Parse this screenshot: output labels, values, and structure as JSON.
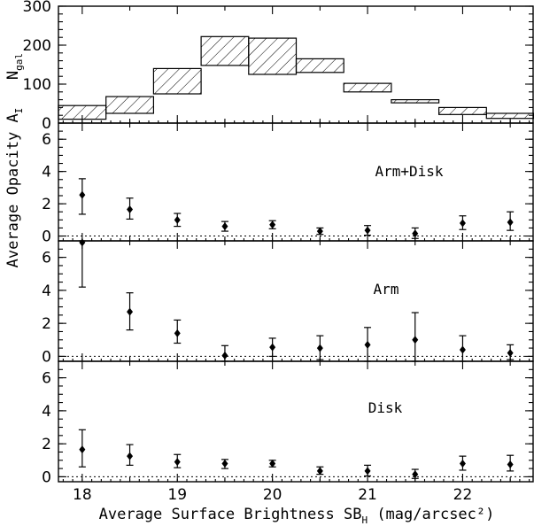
{
  "chart_data": [
    {
      "type": "bar",
      "panel": "histogram",
      "ylabel_main": "N",
      "ylabel_sub": "gal",
      "ylim": [
        0,
        300
      ],
      "yticks": [
        "0",
        "100",
        "200",
        "300"
      ],
      "bins": [
        {
          "x0": 17.75,
          "x1": 18.25,
          "low": 10,
          "high": 45
        },
        {
          "x0": 18.25,
          "x1": 18.75,
          "low": 25,
          "high": 68
        },
        {
          "x0": 18.75,
          "x1": 19.25,
          "low": 75,
          "high": 140
        },
        {
          "x0": 19.25,
          "x1": 19.75,
          "low": 148,
          "high": 222
        },
        {
          "x0": 19.75,
          "x1": 20.25,
          "low": 125,
          "high": 218
        },
        {
          "x0": 20.25,
          "x1": 20.75,
          "low": 130,
          "high": 165
        },
        {
          "x0": 20.75,
          "x1": 21.25,
          "low": 80,
          "high": 102
        },
        {
          "x0": 21.25,
          "x1": 21.75,
          "low": 52,
          "high": 60
        },
        {
          "x0": 21.75,
          "x1": 22.25,
          "low": 22,
          "high": 40
        },
        {
          "x0": 22.25,
          "x1": 22.75,
          "low": 12,
          "high": 25
        }
      ]
    },
    {
      "type": "scatter",
      "panel": "Arm+Disk",
      "ylim": [
        -0.3,
        7
      ],
      "yticks": [
        "0",
        "2",
        "4",
        "6"
      ],
      "points": [
        {
          "x": 18.0,
          "y": 2.55,
          "lo": 1.35,
          "hi": 3.55
        },
        {
          "x": 18.5,
          "y": 1.65,
          "lo": 1.05,
          "hi": 2.35
        },
        {
          "x": 19.0,
          "y": 1.0,
          "lo": 0.6,
          "hi": 1.4
        },
        {
          "x": 19.5,
          "y": 0.6,
          "lo": 0.3,
          "hi": 0.9
        },
        {
          "x": 20.0,
          "y": 0.7,
          "lo": 0.45,
          "hi": 0.95
        },
        {
          "x": 20.5,
          "y": 0.3,
          "lo": 0.1,
          "hi": 0.5
        },
        {
          "x": 21.0,
          "y": 0.35,
          "lo": 0.05,
          "hi": 0.65
        },
        {
          "x": 21.5,
          "y": 0.15,
          "lo": -0.15,
          "hi": 0.5
        },
        {
          "x": 22.0,
          "y": 0.8,
          "lo": 0.4,
          "hi": 1.25
        },
        {
          "x": 22.5,
          "y": 0.85,
          "lo": 0.35,
          "hi": 1.5
        }
      ]
    },
    {
      "type": "scatter",
      "panel": "Arm",
      "ylim": [
        -0.3,
        7
      ],
      "yticks": [
        "0",
        "2",
        "4",
        "6"
      ],
      "points": [
        {
          "x": 18.0,
          "y": 6.9,
          "lo": 4.2,
          "hi": 7.0
        },
        {
          "x": 18.5,
          "y": 2.7,
          "lo": 1.6,
          "hi": 3.85
        },
        {
          "x": 19.0,
          "y": 1.4,
          "lo": 0.8,
          "hi": 2.2
        },
        {
          "x": 19.5,
          "y": 0.05,
          "lo": -0.3,
          "hi": 0.65
        },
        {
          "x": 20.0,
          "y": 0.55,
          "lo": 0.0,
          "hi": 1.1
        },
        {
          "x": 20.5,
          "y": 0.5,
          "lo": -0.2,
          "hi": 1.25
        },
        {
          "x": 21.0,
          "y": 0.7,
          "lo": -0.3,
          "hi": 1.75
        },
        {
          "x": 21.5,
          "y": 1.0,
          "lo": -0.3,
          "hi": 2.65
        },
        {
          "x": 22.0,
          "y": 0.4,
          "lo": -0.3,
          "hi": 1.25
        },
        {
          "x": 22.5,
          "y": 0.2,
          "lo": -0.2,
          "hi": 0.7
        }
      ]
    },
    {
      "type": "scatter",
      "panel": "Disk",
      "ylim": [
        -0.3,
        7
      ],
      "yticks": [
        "0",
        "2",
        "4",
        "6"
      ],
      "xlim": [
        17.75,
        22.75
      ],
      "xticks": [
        "18",
        "19",
        "20",
        "21",
        "22"
      ],
      "points": [
        {
          "x": 18.0,
          "y": 1.65,
          "lo": 0.6,
          "hi": 2.85
        },
        {
          "x": 18.5,
          "y": 1.25,
          "lo": 0.7,
          "hi": 1.95
        },
        {
          "x": 19.0,
          "y": 0.9,
          "lo": 0.55,
          "hi": 1.35
        },
        {
          "x": 19.5,
          "y": 0.8,
          "lo": 0.5,
          "hi": 1.05
        },
        {
          "x": 20.0,
          "y": 0.8,
          "lo": 0.6,
          "hi": 1.0
        },
        {
          "x": 20.5,
          "y": 0.35,
          "lo": 0.15,
          "hi": 0.6
        },
        {
          "x": 21.0,
          "y": 0.35,
          "lo": 0.05,
          "hi": 0.7
        },
        {
          "x": 21.5,
          "y": 0.15,
          "lo": -0.1,
          "hi": 0.45
        },
        {
          "x": 22.0,
          "y": 0.8,
          "lo": 0.4,
          "hi": 1.25
        },
        {
          "x": 22.5,
          "y": 0.75,
          "lo": 0.35,
          "hi": 1.3
        }
      ]
    }
  ],
  "labels": {
    "ylabel_opacity": "Average Opacity A",
    "ylabel_opacity_sub": "I",
    "xlabel": "Average Surface Brightness SB",
    "xlabel_sub": "H",
    "xlabel_units": "(mag/arcsec²)"
  }
}
